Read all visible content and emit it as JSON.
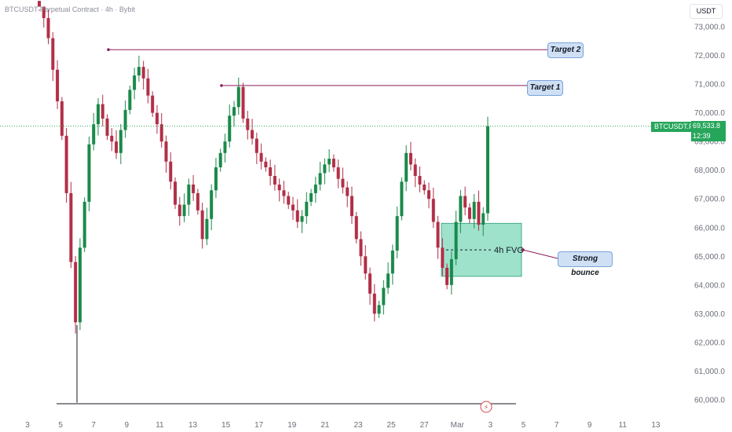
{
  "header": {
    "symbol_line": "BTCUSDT Perpetual Contract · 4h · Bybit"
  },
  "currency": "USDT",
  "price_label": {
    "symbol": "BTCUSDT.P",
    "price": "69,533.8",
    "countdown": "12:39"
  },
  "annotations": {
    "target2": "Target 2",
    "target1": "Target 1",
    "fvg": "4h FVG",
    "bounce": "Strong bounce"
  },
  "colors": {
    "up": "#1a8a4a",
    "down": "#b22f47",
    "fvg_fill": "#7dd8bb",
    "target_line": "#8b1e5a",
    "last_price": "#26a65b"
  },
  "chart_data": {
    "type": "candlestick",
    "title": "BTCUSDT Perpetual Contract · 4h · Bybit",
    "ylim": [
      59700,
      73600
    ],
    "y_ticks": [
      60000,
      61000,
      62000,
      63000,
      64000,
      65000,
      66000,
      67000,
      68000,
      69000,
      70000,
      71000,
      72000,
      73000
    ],
    "x_ticks": [
      "3",
      "5",
      "7",
      "9",
      "11",
      "13",
      "15",
      "17",
      "19",
      "21",
      "23",
      "25",
      "27",
      "Mar",
      "3",
      "5",
      "7",
      "9",
      "11",
      "13"
    ],
    "levels": {
      "target2": 72200,
      "target1": 70950,
      "last_price": 69533.8
    },
    "fvg": {
      "low": 64300,
      "high": 66150
    },
    "candles_close": [
      73700,
      73300,
      72600,
      71500,
      70400,
      69200,
      67200,
      64800,
      62700,
      65300,
      66900,
      68900,
      69600,
      70300,
      69800,
      69200,
      69000,
      68600,
      69400,
      70100,
      70800,
      71300,
      71600,
      71200,
      70600,
      70000,
      69600,
      69000,
      68300,
      67600,
      66800,
      66400,
      66800,
      67500,
      67200,
      66600,
      65600,
      66300,
      67300,
      68100,
      68600,
      69000,
      69900,
      70200,
      70900,
      69800,
      69400,
      69100,
      68600,
      68300,
      68100,
      67800,
      67500,
      67300,
      67100,
      66800,
      66600,
      66200,
      66400,
      66900,
      67200,
      67500,
      67900,
      68200,
      68400,
      68100,
      67700,
      67400,
      67100,
      66400,
      65600,
      65000,
      64400,
      63700,
      63000,
      63300,
      63900,
      64400,
      65200,
      66400,
      67600,
      68600,
      68200,
      67800,
      67500,
      67300,
      67000,
      66200,
      65300,
      64600,
      64000,
      64900,
      66200,
      67100,
      66700,
      66300,
      66900,
      66100,
      66500,
      69533.8
    ]
  }
}
